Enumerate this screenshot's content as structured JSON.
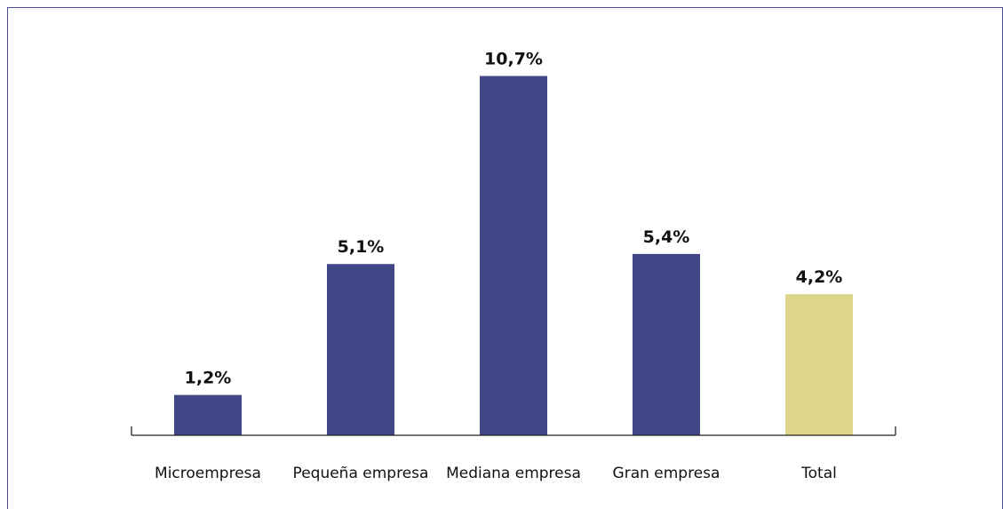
{
  "chart_data": {
    "type": "bar",
    "categories": [
      "Microempresa",
      "Pequeña empresa",
      "Mediana empresa",
      "Gran empresa",
      "Total"
    ],
    "values": [
      1.2,
      5.1,
      10.7,
      5.4,
      4.2
    ],
    "value_labels": [
      "1,2%",
      "5,1%",
      "10,7%",
      "5,4%",
      "4,2%"
    ],
    "bar_colors": [
      "#414686",
      "#414686",
      "#414686",
      "#414686",
      "#ddd68a"
    ],
    "title": "",
    "xlabel": "",
    "ylabel": "",
    "ylim": [
      0,
      12
    ],
    "grid": false,
    "legend": "none"
  },
  "colors": {
    "frame": "#4a4f8f",
    "axis": "#222222"
  }
}
